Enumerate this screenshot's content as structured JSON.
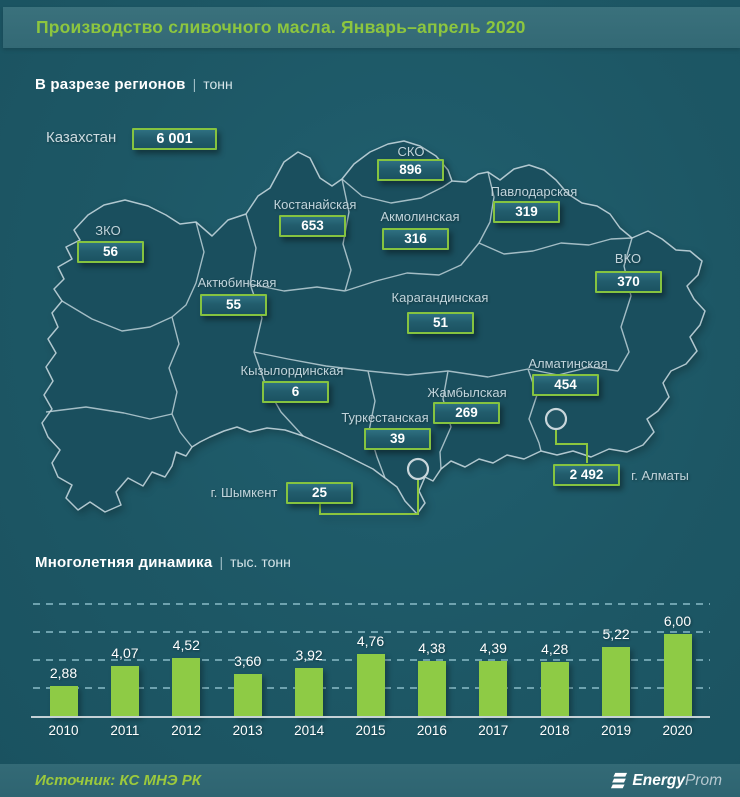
{
  "header": {
    "title": "Производство сливочного масла. Январь–апрель 2020"
  },
  "sections": {
    "map": {
      "title": "В разрезе регионов",
      "separator": "|",
      "unit": "тонн"
    },
    "chart": {
      "title": "Многолетняя динамика",
      "separator": "|",
      "unit": "тыс. тонн"
    }
  },
  "map": {
    "total": {
      "label": "Казахстан",
      "value": "6 001"
    },
    "regions": [
      {
        "label": "СКО",
        "value": "896"
      },
      {
        "label": "Павлодарская",
        "value": "319"
      },
      {
        "label": "Костанайская",
        "value": "653"
      },
      {
        "label": "Акмолинская",
        "value": "316"
      },
      {
        "label": "ЗКО",
        "value": "56"
      },
      {
        "label": "ВКО",
        "value": "370"
      },
      {
        "label": "Актюбинская",
        "value": "55"
      },
      {
        "label": "Карагандинская",
        "value": "51"
      },
      {
        "label": "Кызылординская",
        "value": "6"
      },
      {
        "label": "Алматинская",
        "value": "454"
      },
      {
        "label": "Жамбылская",
        "value": "269"
      },
      {
        "label": "Туркестанская",
        "value": "39"
      },
      {
        "label": "г. Шымкент",
        "value": "25"
      },
      {
        "label": "г. Алматы",
        "value": "2 492"
      }
    ]
  },
  "chart_data": {
    "type": "bar",
    "title": "Многолетняя динамика",
    "ylabel": "тыс. тонн",
    "categories": [
      "2010",
      "2011",
      "2012",
      "2013",
      "2014",
      "2015",
      "2016",
      "2017",
      "2018",
      "2019",
      "2020"
    ],
    "values": [
      2.88,
      4.07,
      4.52,
      3.6,
      3.92,
      4.76,
      4.38,
      4.39,
      4.28,
      5.22,
      6.0
    ],
    "value_labels": [
      "2,88",
      "4,07",
      "4,52",
      "3,60",
      "3,92",
      "4,76",
      "4,38",
      "4,39",
      "4,28",
      "5,22",
      "6,00"
    ],
    "axis_min": 1,
    "grid": "horizontal-dashed",
    "legend": false,
    "bar_color": "#8ecb45"
  },
  "footer": {
    "source": "Источник: КС МНЭ РК",
    "logo": {
      "bold": "Energy",
      "light": "Prom"
    }
  },
  "colors": {
    "accent_green": "#8dc63f",
    "background": "#1d5765",
    "map_fill": "#1a4f5e",
    "badge_border": "#85c340",
    "bar": "#8ecb45"
  }
}
